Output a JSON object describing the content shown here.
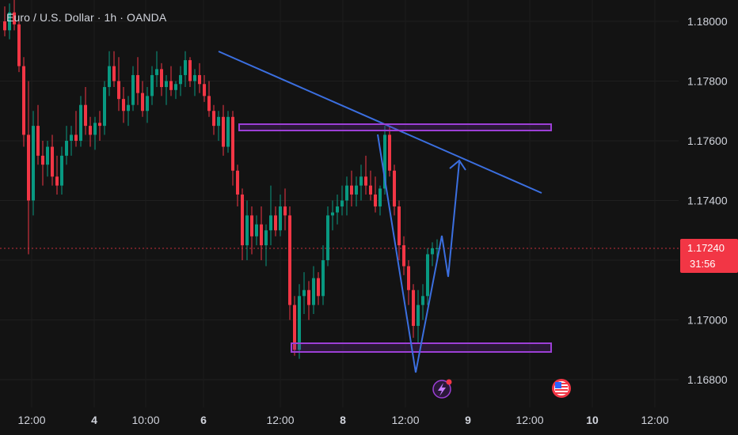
{
  "header": {
    "title": "Euro / U.S. Dollar · 1h · OANDA"
  },
  "price_label": {
    "price": "1.17240",
    "countdown": "31:56"
  },
  "colors": {
    "background": "#131313",
    "up": "#089981",
    "down": "#f23645",
    "trendline": "#3b6fe0",
    "zone": "#9c3fd6",
    "text": "#d1d4dc"
  },
  "chart_data": {
    "type": "candlestick",
    "title": "Euro / U.S. Dollar · 1h · OANDA",
    "ylim": [
      1.1675,
      1.181
    ],
    "y_ticks": [
      "1.18000",
      "1.17800",
      "1.17600",
      "1.17400",
      "1.17200",
      "1.17000",
      "1.16800"
    ],
    "x_ticks": [
      "12:00",
      "4",
      "10:00",
      "6",
      "12:00",
      "8",
      "12:00",
      "9",
      "12:00",
      "10",
      "12:00"
    ],
    "last_price": 1.1724,
    "candles": [
      [
        1.18,
        1.1805,
        1.1795,
        1.1797
      ],
      [
        1.1797,
        1.1806,
        1.1794,
        1.1803
      ],
      [
        1.1803,
        1.1808,
        1.1797,
        1.1799
      ],
      [
        1.1799,
        1.18,
        1.1783,
        1.1785
      ],
      [
        1.1785,
        1.1788,
        1.1758,
        1.1762
      ],
      [
        1.1762,
        1.178,
        1.1722,
        1.174
      ],
      [
        1.174,
        1.177,
        1.1735,
        1.1765
      ],
      [
        1.1765,
        1.1772,
        1.1752,
        1.1755
      ],
      [
        1.1755,
        1.176,
        1.1745,
        1.1752
      ],
      [
        1.1752,
        1.176,
        1.1748,
        1.1758
      ],
      [
        1.1758,
        1.1762,
        1.1745,
        1.1748
      ],
      [
        1.1748,
        1.1755,
        1.1742,
        1.1745
      ],
      [
        1.1745,
        1.1758,
        1.1742,
        1.1755
      ],
      [
        1.1755,
        1.1765,
        1.1752,
        1.176
      ],
      [
        1.176,
        1.1765,
        1.1755,
        1.1762
      ],
      [
        1.1762,
        1.177,
        1.1758,
        1.176
      ],
      [
        1.176,
        1.1775,
        1.1758,
        1.1772
      ],
      [
        1.1772,
        1.1778,
        1.1762,
        1.1765
      ],
      [
        1.1765,
        1.1768,
        1.1758,
        1.1762
      ],
      [
        1.1762,
        1.1768,
        1.1757,
        1.1766
      ],
      [
        1.1766,
        1.177,
        1.176,
        1.1765
      ],
      [
        1.1765,
        1.178,
        1.1762,
        1.1778
      ],
      [
        1.1778,
        1.179,
        1.1775,
        1.1785
      ],
      [
        1.1785,
        1.179,
        1.1778,
        1.178
      ],
      [
        1.178,
        1.1788,
        1.177,
        1.1774
      ],
      [
        1.1774,
        1.1778,
        1.1766,
        1.177
      ],
      [
        1.177,
        1.1775,
        1.1765,
        1.1772
      ],
      [
        1.1772,
        1.1785,
        1.177,
        1.1782
      ],
      [
        1.1782,
        1.1788,
        1.1772,
        1.1776
      ],
      [
        1.1776,
        1.178,
        1.1768,
        1.177
      ],
      [
        1.177,
        1.1778,
        1.1766,
        1.1775
      ],
      [
        1.1775,
        1.1785,
        1.1772,
        1.1782
      ],
      [
        1.1782,
        1.179,
        1.1778,
        1.1784
      ],
      [
        1.1784,
        1.1786,
        1.1775,
        1.1778
      ],
      [
        1.1778,
        1.1782,
        1.1772,
        1.178
      ],
      [
        1.178,
        1.1785,
        1.1775,
        1.1777
      ],
      [
        1.1777,
        1.178,
        1.1774,
        1.1779
      ],
      [
        1.1779,
        1.1785,
        1.1775,
        1.1782
      ],
      [
        1.1782,
        1.179,
        1.1778,
        1.1787
      ],
      [
        1.1787,
        1.1788,
        1.1778,
        1.178
      ],
      [
        1.178,
        1.1784,
        1.1775,
        1.1782
      ],
      [
        1.1782,
        1.1786,
        1.1776,
        1.1779
      ],
      [
        1.1779,
        1.1782,
        1.1773,
        1.1775
      ],
      [
        1.1775,
        1.178,
        1.1768,
        1.177
      ],
      [
        1.177,
        1.1772,
        1.1762,
        1.1765
      ],
      [
        1.1765,
        1.177,
        1.176,
        1.1768
      ],
      [
        1.1768,
        1.1772,
        1.1755,
        1.1758
      ],
      [
        1.1758,
        1.177,
        1.1756,
        1.1768
      ],
      [
        1.1768,
        1.177,
        1.1745,
        1.175
      ],
      [
        1.175,
        1.1752,
        1.1738,
        1.1742
      ],
      [
        1.1742,
        1.1744,
        1.172,
        1.1725
      ],
      [
        1.1725,
        1.174,
        1.172,
        1.1735
      ],
      [
        1.1735,
        1.1738,
        1.1722,
        1.1728
      ],
      [
        1.1728,
        1.1735,
        1.1725,
        1.1732
      ],
      [
        1.1732,
        1.1738,
        1.172,
        1.1725
      ],
      [
        1.1725,
        1.1732,
        1.1718,
        1.173
      ],
      [
        1.173,
        1.1745,
        1.1725,
        1.1735
      ],
      [
        1.1735,
        1.1738,
        1.1728,
        1.173
      ],
      [
        1.173,
        1.1742,
        1.1728,
        1.1738
      ],
      [
        1.1738,
        1.1744,
        1.173,
        1.1735
      ],
      [
        1.1735,
        1.1738,
        1.17,
        1.1705
      ],
      [
        1.1705,
        1.1708,
        1.1688,
        1.169
      ],
      [
        1.169,
        1.1712,
        1.1687,
        1.1708
      ],
      [
        1.1708,
        1.1716,
        1.1702,
        1.171
      ],
      [
        1.171,
        1.1713,
        1.17,
        1.1705
      ],
      [
        1.1705,
        1.1718,
        1.1702,
        1.1714
      ],
      [
        1.1714,
        1.1716,
        1.1705,
        1.1708
      ],
      [
        1.1708,
        1.1725,
        1.1705,
        1.172
      ],
      [
        1.172,
        1.1738,
        1.1718,
        1.1735
      ],
      [
        1.1735,
        1.174,
        1.173,
        1.1736
      ],
      [
        1.1736,
        1.1742,
        1.1732,
        1.1738
      ],
      [
        1.1738,
        1.1745,
        1.1735,
        1.174
      ],
      [
        1.174,
        1.1748,
        1.1735,
        1.1745
      ],
      [
        1.1745,
        1.175,
        1.1738,
        1.1742
      ],
      [
        1.1742,
        1.1748,
        1.1738,
        1.1745
      ],
      [
        1.1745,
        1.1752,
        1.174,
        1.1748
      ],
      [
        1.1748,
        1.1755,
        1.1742,
        1.1745
      ],
      [
        1.1745,
        1.175,
        1.174,
        1.1742
      ],
      [
        1.1742,
        1.1748,
        1.1736,
        1.1738
      ],
      [
        1.1738,
        1.1745,
        1.1735,
        1.1744
      ],
      [
        1.1744,
        1.1765,
        1.1742,
        1.1762
      ],
      [
        1.1762,
        1.1765,
        1.1748,
        1.175
      ],
      [
        1.175,
        1.1752,
        1.1735,
        1.1738
      ],
      [
        1.1738,
        1.174,
        1.172,
        1.1725
      ],
      [
        1.1725,
        1.1728,
        1.1715,
        1.1718
      ],
      [
        1.1718,
        1.172,
        1.1705,
        1.171
      ],
      [
        1.171,
        1.1712,
        1.1694,
        1.1698
      ],
      [
        1.1698,
        1.171,
        1.1692,
        1.1705
      ],
      [
        1.1705,
        1.1712,
        1.17,
        1.1708
      ],
      [
        1.1708,
        1.1724,
        1.1705,
        1.1722
      ],
      [
        1.1722,
        1.1726,
        1.1718,
        1.1724
      ],
      [
        1.1724,
        1.1727,
        1.172,
        1.1724
      ]
    ],
    "annotations": {
      "trendline": [
        [
          1.179,
          1.1742
        ]
      ],
      "resistance_zone": [
        1.1764,
        1.1765
      ],
      "support_zone": [
        1.1691,
        1.169
      ]
    }
  }
}
